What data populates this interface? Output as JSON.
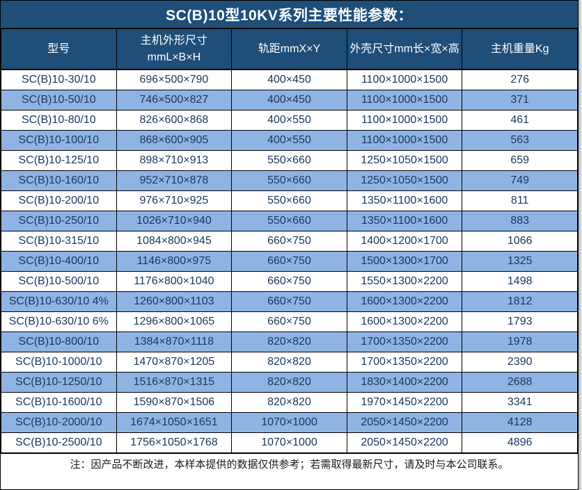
{
  "title": "SC(B)10型10KV系列主要性能参数：",
  "footer_note": "注：因产品不断改进，本样本提供的数据仅供参考；若需取得最新尺寸，请及时与本公司联系。",
  "colors": {
    "header_bg": "#1F4E79",
    "alt_row_bg": "#8FB4E3",
    "row_bg": "#FFFFFF",
    "header_text": "#FFFFFF",
    "body_text": "#17375D",
    "border": "#000000"
  },
  "chart_data": {
    "type": "table",
    "title": "SC(B)10型10KV系列主要性能参数：",
    "columns": [
      {
        "line1": "型号",
        "line2": ""
      },
      {
        "line1": "主机外形尺寸",
        "line2": "mmL×B×H"
      },
      {
        "line1": "轨距mmX×Y",
        "line2": ""
      },
      {
        "line1": "外壳尺寸mm长×宽×高",
        "line2": ""
      },
      {
        "line1": "主机重量Kg",
        "line2": ""
      }
    ],
    "rows": [
      [
        "SC(B)10-30/10",
        "696×500×790",
        "400×450",
        "1100×1000×1500",
        "276"
      ],
      [
        "SC(B)10-50/10",
        "746×500×827",
        "400×450",
        "1100×1000×1500",
        "371"
      ],
      [
        "SC(B)10-80/10",
        "826×600×868",
        "400×550",
        "1100×1000×1500",
        "461"
      ],
      [
        "SC(B)10-100/10",
        "868×600×905",
        "400×550",
        "1100×1000×1500",
        "563"
      ],
      [
        "SC(B)10-125/10",
        "898×710×913",
        "550×660",
        "1250×1050×1500",
        "659"
      ],
      [
        "SC(B)10-160/10",
        "952×710×878",
        "550×660",
        "1250×1050×1500",
        "749"
      ],
      [
        "SC(B)10-200/10",
        "976×710×925",
        "550×660",
        "1350×1100×1600",
        "811"
      ],
      [
        "SC(B)10-250/10",
        "1026×710×940",
        "550×660",
        "1350×1100×1600",
        "883"
      ],
      [
        "SC(B)10-315/10",
        "1084×800×945",
        "660×750",
        "1400×1200×1700",
        "1066"
      ],
      [
        "SC(B)10-400/10",
        "1146×800×975",
        "660×750",
        "1500×1300×1700",
        "1325"
      ],
      [
        "SC(B)10-500/10",
        "1176×800×1040",
        "660×750",
        "1550×1300×2200",
        "1498"
      ],
      [
        "SC(B)10-630/10 4%",
        "1260×800×1103",
        "660×750",
        "1600×1300×2200",
        "1812"
      ],
      [
        "SC(B)10-630/10 6%",
        "1296×800×1065",
        "660×750",
        "1600×1300×2200",
        "1793"
      ],
      [
        "SC(B)10-800/10",
        "1384×870×1118",
        "820×820",
        "1700×1350×2200",
        "1978"
      ],
      [
        "SC(B)10-1000/10",
        "1470×870×1205",
        "820×820",
        "1700×1350×2200",
        "2390"
      ],
      [
        "SC(B)10-1250/10",
        "1516×870×1315",
        "820×820",
        "1830×1400×2200",
        "2688"
      ],
      [
        "SC(B)10-1600/10",
        "1590×870×1506",
        "820×820",
        "1970×1450×2200",
        "3341"
      ],
      [
        "SC(B)10-2000/10",
        "1674×1050×1651",
        "1070×1000",
        "2050×1450×2200",
        "4128"
      ],
      [
        "SC(B)10-2500/10",
        "1756×1050×1768",
        "1070×1000",
        "2050×1450×2200",
        "4896"
      ]
    ]
  }
}
